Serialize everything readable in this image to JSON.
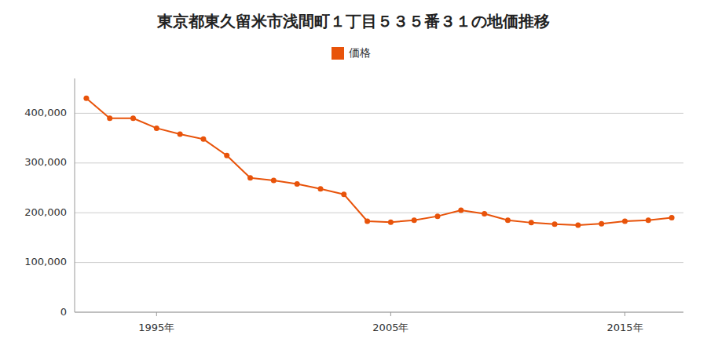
{
  "chart_data": {
    "type": "line",
    "title": "東京都東久留米市浅間町１丁目５３５番３１の地価推移",
    "x": [
      1992,
      1993,
      1994,
      1995,
      1996,
      1997,
      1998,
      1999,
      2000,
      2001,
      2002,
      2003,
      2004,
      2005,
      2006,
      2007,
      2008,
      2009,
      2010,
      2011,
      2012,
      2013,
      2014,
      2015,
      2016,
      2017
    ],
    "series": [
      {
        "name": "価格",
        "color": "#e8530a",
        "marker": "circle",
        "values": [
          430000,
          390000,
          390000,
          370000,
          358000,
          348000,
          315000,
          270000,
          265000,
          258000,
          248000,
          237000,
          183000,
          181000,
          185000,
          193000,
          205000,
          198000,
          185000,
          180000,
          177000,
          175000,
          178000,
          183000,
          185000,
          190000
        ]
      }
    ],
    "xlim": [
      1991.5,
      2017.5
    ],
    "xticks": [
      {
        "value": 1995,
        "label": "1995年"
      },
      {
        "value": 2005,
        "label": "2005年"
      },
      {
        "value": 2015,
        "label": "2015年"
      }
    ],
    "ylim": [
      0,
      470000
    ],
    "yticks": [
      0,
      {
        "value": 100000,
        "label": "100,000"
      },
      {
        "value": 200000,
        "label": "200,000"
      },
      {
        "value": 300000,
        "label": "300,000"
      },
      {
        "value": 400000,
        "label": "400,000"
      }
    ],
    "grid": true,
    "legend": "top"
  }
}
